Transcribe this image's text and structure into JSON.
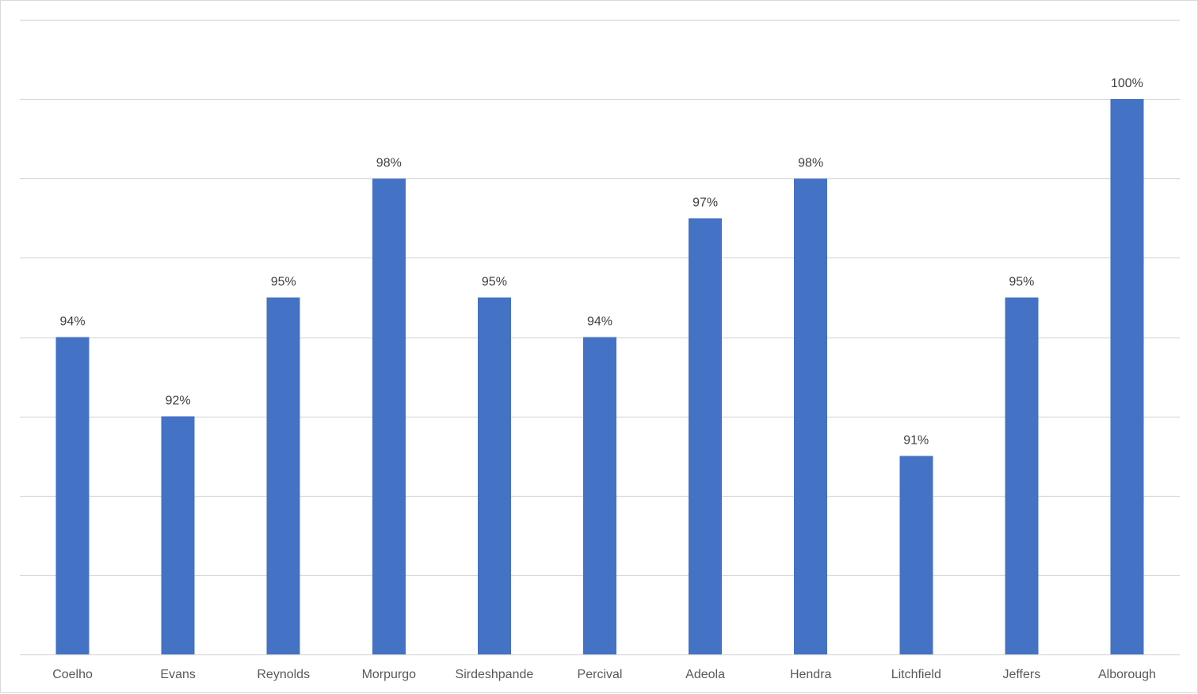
{
  "chart_data": {
    "type": "bar",
    "categories": [
      "Coelho",
      "Evans",
      "Reynolds",
      "Morpurgo",
      "Sirdeshpande",
      "Percival",
      "Adeola",
      "Hendra",
      "Litchfield",
      "Jeffers",
      "Alborough"
    ],
    "values": [
      94,
      92,
      95,
      98,
      95,
      94,
      97,
      98,
      91,
      95,
      100
    ],
    "data_labels": [
      "94%",
      "92%",
      "95%",
      "98%",
      "95%",
      "94%",
      "97%",
      "98%",
      "91%",
      "95%",
      "100%"
    ],
    "title": "",
    "xlabel": "",
    "ylabel": "",
    "ylim": [
      86,
      102
    ],
    "grid": true,
    "legend": "none",
    "colors": {
      "bar": "#4472c4",
      "grid": "#d9d9d9",
      "label_text": "#404040",
      "tick_text": "#595959",
      "background": "#ffffff"
    }
  }
}
